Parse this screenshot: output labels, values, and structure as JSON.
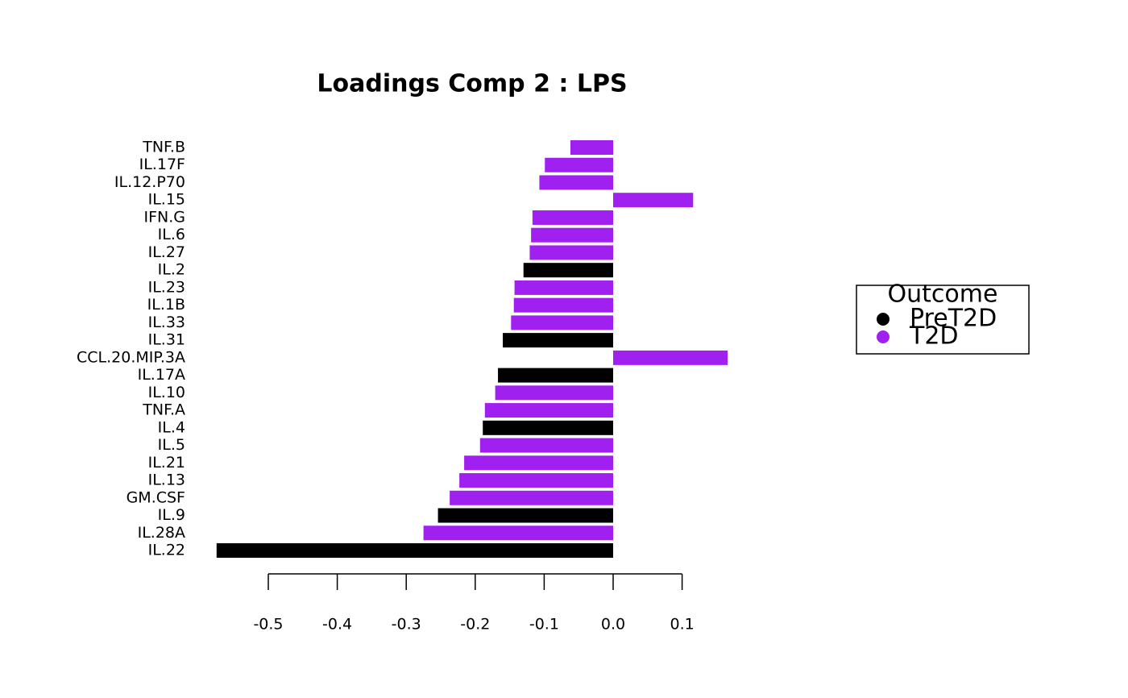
{
  "chart_data": {
    "type": "hbar",
    "title": "Loadings Comp 2 : LPS",
    "categories": [
      "TNF.B",
      "IL.17F",
      "IL.12.P70",
      "IL.15",
      "IFN.G",
      "IL.6",
      "IL.27",
      "IL.2",
      "IL.23",
      "IL.1B",
      "IL.33",
      "IL.31",
      "CCL.20.MIP.3A",
      "IL.17A",
      "IL.10",
      "TNF.A",
      "IL.4",
      "IL.5",
      "IL.21",
      "IL.13",
      "GM.CSF",
      "IL.9",
      "IL.28A",
      "IL.22"
    ],
    "values": [
      -0.062,
      -0.099,
      -0.107,
      0.116,
      -0.117,
      -0.119,
      -0.121,
      -0.13,
      -0.143,
      -0.144,
      -0.148,
      -0.16,
      0.166,
      -0.167,
      -0.171,
      -0.186,
      -0.189,
      -0.193,
      -0.216,
      -0.223,
      -0.237,
      -0.254,
      -0.275,
      -0.575
    ],
    "colors": [
      "#a020f0",
      "#a020f0",
      "#a020f0",
      "#a020f0",
      "#a020f0",
      "#a020f0",
      "#a020f0",
      "#000000",
      "#a020f0",
      "#a020f0",
      "#a020f0",
      "#000000",
      "#a020f0",
      "#000000",
      "#a020f0",
      "#a020f0",
      "#000000",
      "#a020f0",
      "#a020f0",
      "#a020f0",
      "#a020f0",
      "#000000",
      "#a020f0",
      "#000000"
    ],
    "xlim": [
      -0.6,
      0.19
    ],
    "xticks": [
      -0.5,
      -0.4,
      -0.3,
      -0.2,
      -0.1,
      {
        "value": 0,
        "label": "0.0"
      },
      0.1
    ],
    "legend": {
      "title": "Outcome",
      "position": "right",
      "entries": [
        {
          "name": "PreT2D",
          "color": "#000000"
        },
        {
          "name": "T2D",
          "color": "#a020f0"
        }
      ]
    }
  }
}
